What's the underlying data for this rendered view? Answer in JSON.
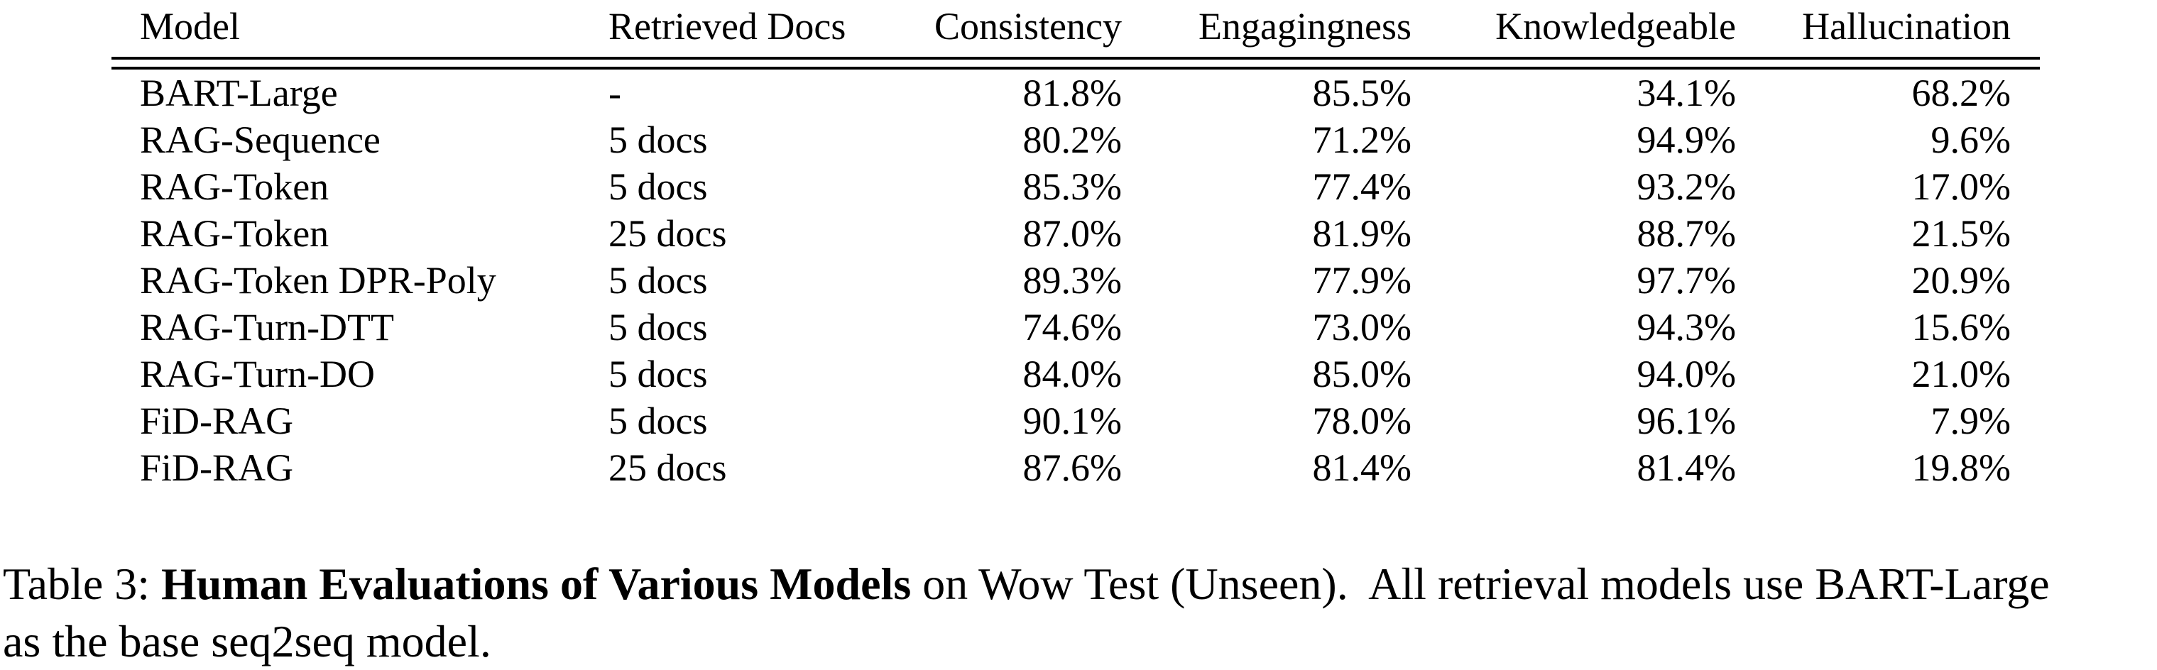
{
  "page": {
    "background": "#ffffff",
    "text_color": "#000000"
  },
  "table": {
    "columns": [
      "Model",
      "Retrieved Docs",
      "Consistency",
      "Engagingness",
      "Knowledgeable",
      "Hallucination"
    ],
    "rows": [
      [
        "BART-Large",
        "-",
        "81.8%",
        "85.5%",
        "34.1%",
        "68.2%"
      ],
      [
        "RAG-Sequence",
        "5 docs",
        "80.2%",
        "71.2%",
        "94.9%",
        "9.6%"
      ],
      [
        "RAG-Token",
        "5 docs",
        "85.3%",
        "77.4%",
        "93.2%",
        "17.0%"
      ],
      [
        "RAG-Token",
        "25 docs",
        "87.0%",
        "81.9%",
        "88.7%",
        "21.5%"
      ],
      [
        "RAG-Token DPR-Poly",
        "5 docs",
        "89.3%",
        "77.9%",
        "97.7%",
        "20.9%"
      ],
      [
        "RAG-Turn-DTT",
        "5 docs",
        "74.6%",
        "73.0%",
        "94.3%",
        "15.6%"
      ],
      [
        "RAG-Turn-DO",
        "5 docs",
        "84.0%",
        "85.0%",
        "94.0%",
        "21.0%"
      ],
      [
        "FiD-RAG",
        "5 docs",
        "90.1%",
        "78.0%",
        "96.1%",
        "7.9%"
      ],
      [
        "FiD-RAG",
        "25 docs",
        "87.6%",
        "81.4%",
        "81.4%",
        "19.8%"
      ]
    ]
  },
  "caption": {
    "label": "Table 3: ",
    "title_bold": "Human Evaluations of Various Models",
    "line1_rest": " on Wow Test (Unseen).  All retrieval models use BART-Large",
    "line2": "as the base seq2seq model."
  }
}
